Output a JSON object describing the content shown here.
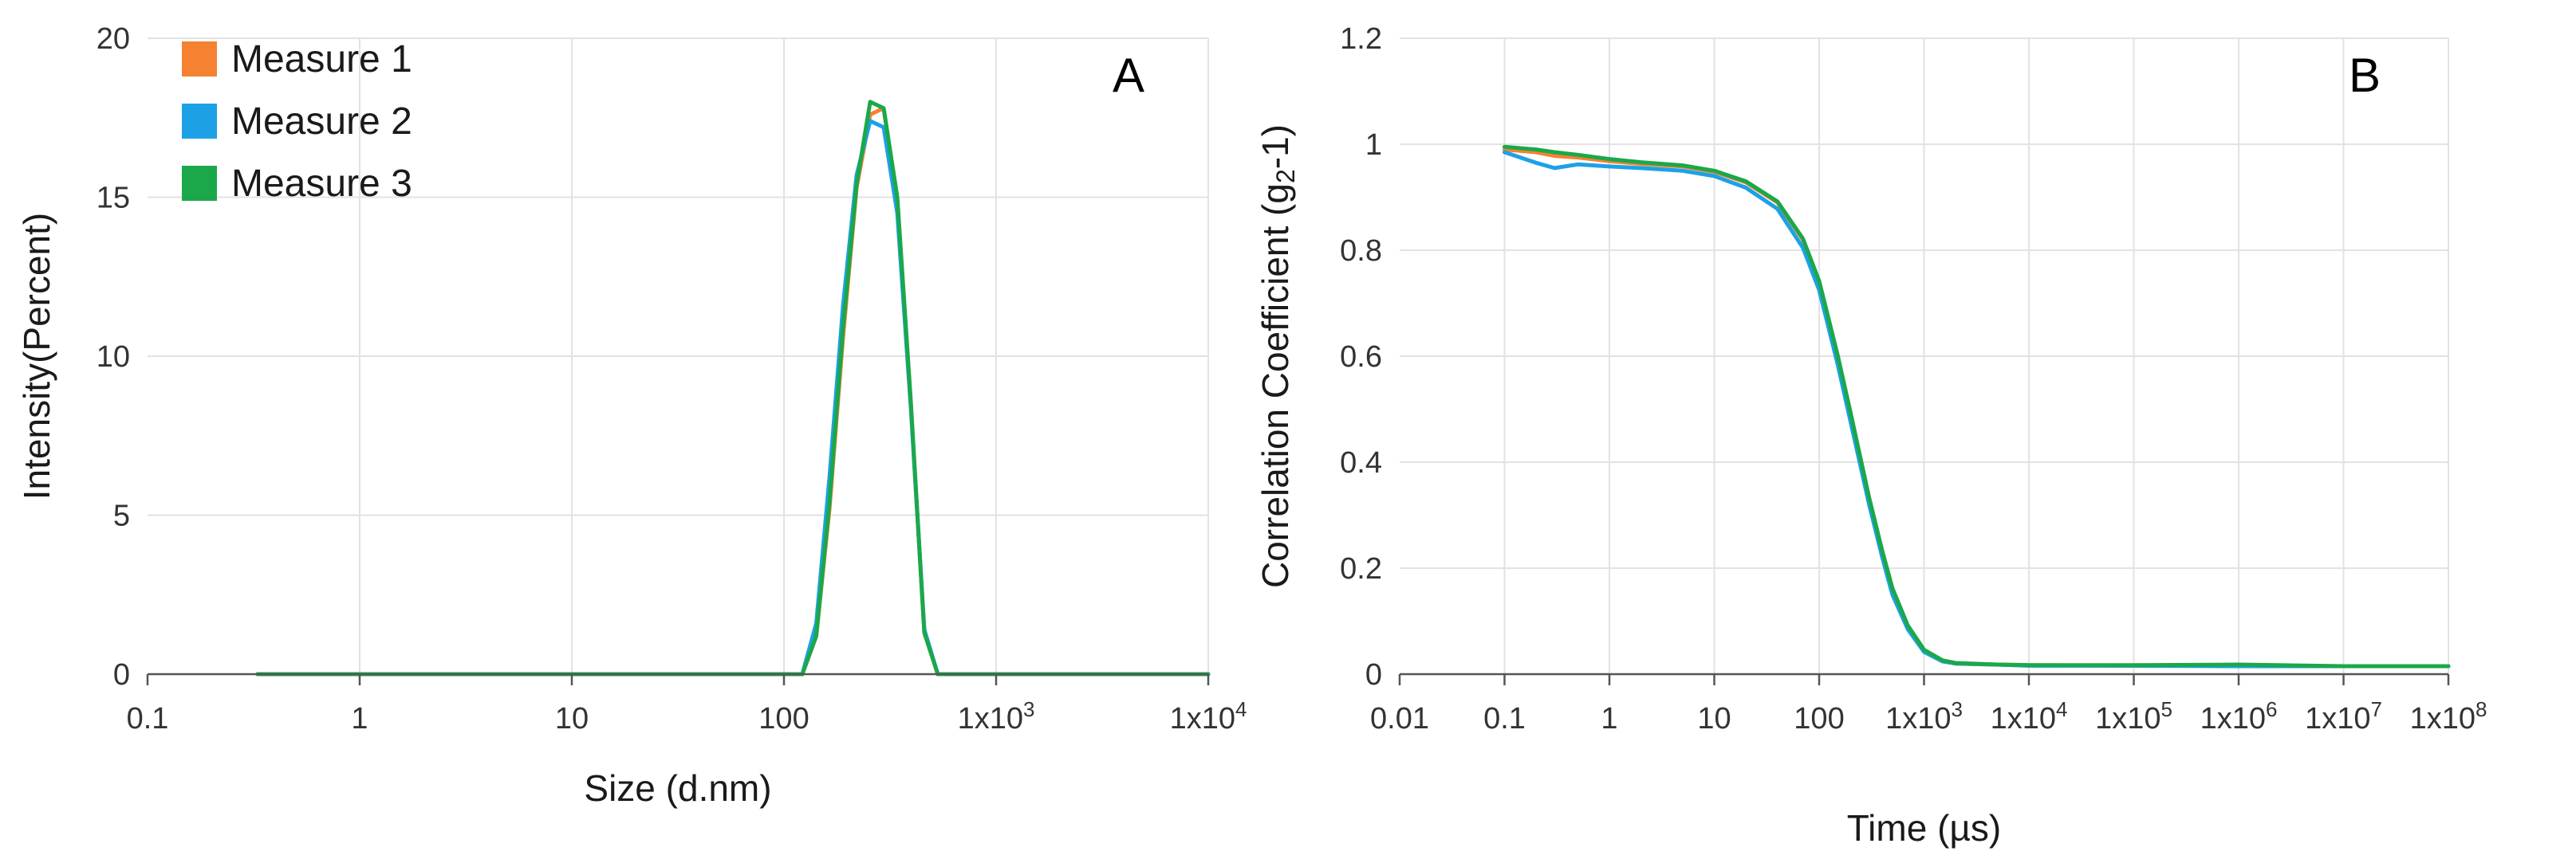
{
  "chart_data": [
    {
      "id": "A",
      "type": "line",
      "panel_label": "A",
      "xlabel": "Size (d.nm)",
      "ylabel": "Intensity(Percent)",
      "xscale": "log",
      "xlim": [
        0.1,
        10000
      ],
      "ylim": [
        0,
        20
      ],
      "grid": true,
      "legend_position": "top-left",
      "x_ticks": [
        {
          "value": 0.1,
          "label": "0.1"
        },
        {
          "value": 1,
          "label": "1"
        },
        {
          "value": 10,
          "label": "10"
        },
        {
          "value": 100,
          "label": "100"
        },
        {
          "value": 1000,
          "label": "1x10",
          "sup": "3"
        },
        {
          "value": 10000,
          "label": "1x10",
          "sup": "4"
        }
      ],
      "y_ticks": [
        {
          "value": 0,
          "label": "0"
        },
        {
          "value": 5,
          "label": "5"
        },
        {
          "value": 10,
          "label": "10"
        },
        {
          "value": 15,
          "label": "15"
        },
        {
          "value": 20,
          "label": "20"
        }
      ],
      "series": [
        {
          "name": "Measure 1",
          "color": "#f58231",
          "x": [
            0.33,
            10,
            122,
            142,
            164,
            190,
            220,
            255,
            295,
            342,
            396,
            459,
            531,
            615,
            10000
          ],
          "y": [
            0,
            0,
            0,
            1.2,
            5.2,
            10.6,
            15.3,
            17.6,
            17.8,
            14.9,
            8.5,
            1.3,
            0,
            0,
            0
          ]
        },
        {
          "name": "Measure 2",
          "color": "#1da1e6",
          "x": [
            0.33,
            10,
            122,
            142,
            164,
            190,
            220,
            255,
            295,
            342,
            396,
            459,
            531,
            615,
            10000
          ],
          "y": [
            0,
            0,
            0,
            1.6,
            6.2,
            11.6,
            15.7,
            17.4,
            17.2,
            14.5,
            8.4,
            1.4,
            0,
            0,
            0
          ]
        },
        {
          "name": "Measure 3",
          "color": "#1aa84a",
          "x": [
            0.33,
            10,
            122,
            142,
            164,
            190,
            220,
            255,
            295,
            342,
            396,
            459,
            531,
            615,
            10000
          ],
          "y": [
            0,
            0,
            0,
            1.2,
            5.4,
            10.9,
            15.4,
            18.0,
            17.8,
            15.0,
            8.6,
            1.3,
            0,
            0,
            0
          ]
        }
      ]
    },
    {
      "id": "B",
      "type": "line",
      "panel_label": "B",
      "xlabel": "Time (µs)",
      "ylabel_main": "Correlation Coefficient (g",
      "ylabel_sub": "2",
      "ylabel_end": "-1)",
      "xscale": "log",
      "xlim": [
        0.01,
        100000000
      ],
      "ylim": [
        0,
        1.2
      ],
      "grid": true,
      "x_ticks": [
        {
          "value": 0.01,
          "label": "0.01"
        },
        {
          "value": 0.1,
          "label": "0.1"
        },
        {
          "value": 1,
          "label": "1"
        },
        {
          "value": 10,
          "label": "10"
        },
        {
          "value": 100,
          "label": "100"
        },
        {
          "value": 1000,
          "label": "1x10",
          "sup": "3"
        },
        {
          "value": 10000,
          "label": "1x10",
          "sup": "4"
        },
        {
          "value": 100000,
          "label": "1x10",
          "sup": "5"
        },
        {
          "value": 1000000,
          "label": "1x10",
          "sup": "6"
        },
        {
          "value": 10000000,
          "label": "1x10",
          "sup": "7"
        },
        {
          "value": 100000000,
          "label": "1x10",
          "sup": "8"
        }
      ],
      "y_ticks": [
        {
          "value": 0,
          "label": "0"
        },
        {
          "value": 0.2,
          "label": "0.2"
        },
        {
          "value": 0.4,
          "label": "0.4"
        },
        {
          "value": 0.6,
          "label": "0.6"
        },
        {
          "value": 0.8,
          "label": "0.8"
        },
        {
          "value": 1,
          "label": "1"
        },
        {
          "value": 1.2,
          "label": "1.2"
        }
      ],
      "series": [
        {
          "name": "Measure 1",
          "color": "#f58231",
          "x": [
            0.1,
            0.2,
            0.3,
            0.5,
            1,
            2,
            5,
            10,
            20,
            40,
            70,
            100,
            150,
            200,
            300,
            400,
            500,
            700,
            1000,
            1500,
            2000,
            5000,
            10000,
            100000,
            1000000,
            10000000,
            100000000
          ],
          "y": [
            0.99,
            0.985,
            0.978,
            0.975,
            0.968,
            0.963,
            0.958,
            0.948,
            0.928,
            0.89,
            0.82,
            0.74,
            0.6,
            0.49,
            0.33,
            0.23,
            0.16,
            0.09,
            0.045,
            0.025,
            0.02,
            0.018,
            0.017,
            0.016,
            0.016,
            0.015,
            0.015
          ]
        },
        {
          "name": "Measure 2",
          "color": "#1da1e6",
          "x": [
            0.1,
            0.2,
            0.3,
            0.5,
            1,
            2,
            5,
            10,
            20,
            40,
            70,
            100,
            150,
            200,
            300,
            400,
            500,
            700,
            1000,
            1500,
            2000,
            5000,
            10000,
            100000,
            1000000,
            10000000,
            100000000
          ],
          "y": [
            0.985,
            0.965,
            0.955,
            0.962,
            0.958,
            0.955,
            0.95,
            0.94,
            0.918,
            0.878,
            0.805,
            0.725,
            0.585,
            0.475,
            0.32,
            0.22,
            0.15,
            0.085,
            0.042,
            0.024,
            0.02,
            0.018,
            0.016,
            0.016,
            0.015,
            0.015,
            0.015
          ]
        },
        {
          "name": "Measure 3",
          "color": "#1aa84a",
          "x": [
            0.1,
            0.2,
            0.3,
            0.5,
            1,
            2,
            5,
            10,
            20,
            40,
            70,
            100,
            150,
            200,
            300,
            400,
            500,
            700,
            1000,
            1500,
            2000,
            5000,
            10000,
            100000,
            1000000,
            10000000,
            100000000
          ],
          "y": [
            0.995,
            0.99,
            0.985,
            0.98,
            0.972,
            0.966,
            0.96,
            0.95,
            0.93,
            0.892,
            0.822,
            0.742,
            0.602,
            0.492,
            0.333,
            0.232,
            0.162,
            0.092,
            0.046,
            0.026,
            0.021,
            0.018,
            0.017,
            0.017,
            0.018,
            0.015,
            0.015
          ]
        }
      ]
    }
  ]
}
